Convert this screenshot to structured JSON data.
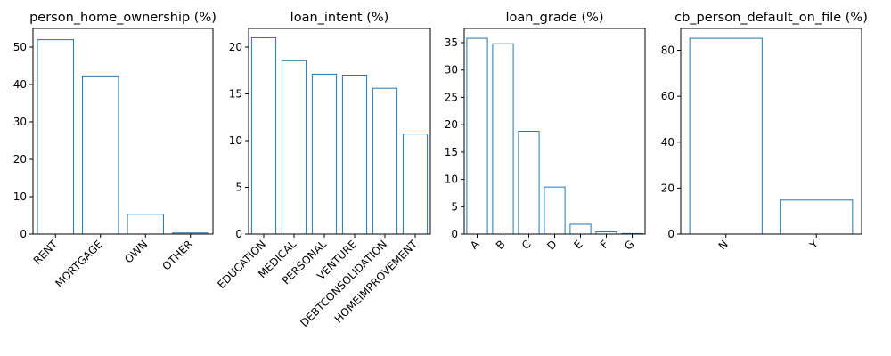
{
  "chart_data": [
    {
      "type": "bar",
      "title": "person_home_ownership (%)",
      "categories": [
        "RENT",
        "MORTGAGE",
        "OWN",
        "OTHER"
      ],
      "values": [
        52.0,
        42.3,
        5.3,
        0.3
      ],
      "ylim": [
        0,
        55
      ],
      "yticks": [
        0,
        10,
        20,
        30,
        40,
        50
      ],
      "xlabel": "",
      "ylabel": "",
      "grid": false,
      "bar_fill": "none",
      "bar_edge_color": "#1f77b4"
    },
    {
      "type": "bar",
      "title": "loan_intent (%)",
      "categories": [
        "EDUCATION",
        "MEDICAL",
        "PERSONAL",
        "VENTURE",
        "DEBTCONSOLIDATION",
        "HOMEIMPROVEMENT"
      ],
      "values": [
        21.0,
        18.6,
        17.1,
        17.0,
        15.6,
        10.7
      ],
      "ylim": [
        0,
        22
      ],
      "yticks": [
        0,
        5,
        10,
        15,
        20
      ],
      "xlabel": "",
      "ylabel": "",
      "grid": false,
      "bar_fill": "none",
      "bar_edge_color": "#1f77b4"
    },
    {
      "type": "bar",
      "title": "loan_grade (%)",
      "categories": [
        "A",
        "B",
        "C",
        "D",
        "E",
        "F",
        "G"
      ],
      "values": [
        35.8,
        34.8,
        18.8,
        8.6,
        1.8,
        0.4,
        0.1
      ],
      "ylim": [
        0,
        37.6
      ],
      "yticks": [
        0,
        5,
        10,
        15,
        20,
        25,
        30,
        35
      ],
      "xlabel": "",
      "ylabel": "",
      "grid": false,
      "bar_fill": "none",
      "bar_edge_color": "#1f77b4"
    },
    {
      "type": "bar",
      "title": "cb_person_default_on_file (%)",
      "categories": [
        "N",
        "Y"
      ],
      "values": [
        85.2,
        14.8
      ],
      "ylim": [
        0,
        89.5
      ],
      "yticks": [
        0,
        20,
        40,
        60,
        80
      ],
      "xlabel": "",
      "ylabel": "",
      "grid": false,
      "bar_fill": "none",
      "bar_edge_color": "#1f77b4"
    }
  ]
}
